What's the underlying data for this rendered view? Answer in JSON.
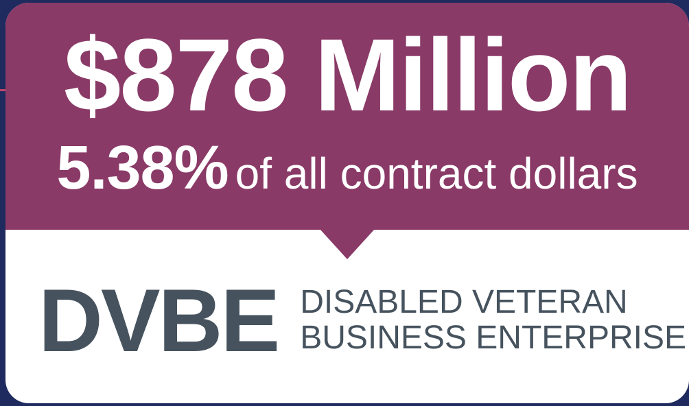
{
  "colors": {
    "background": "#1f2a5e",
    "accent_panel": "#8a3a67",
    "card_bottom": "#ffffff",
    "brand_text": "#46535e"
  },
  "headline": {
    "amount": "$878 Million"
  },
  "subline": {
    "percent": "5.38%",
    "text": "of all contract dollars"
  },
  "brand": {
    "acronym": "DVBE",
    "name_line1": "DISABLED VETERAN",
    "name_line2": "BUSINESS ENTERPRISE"
  }
}
